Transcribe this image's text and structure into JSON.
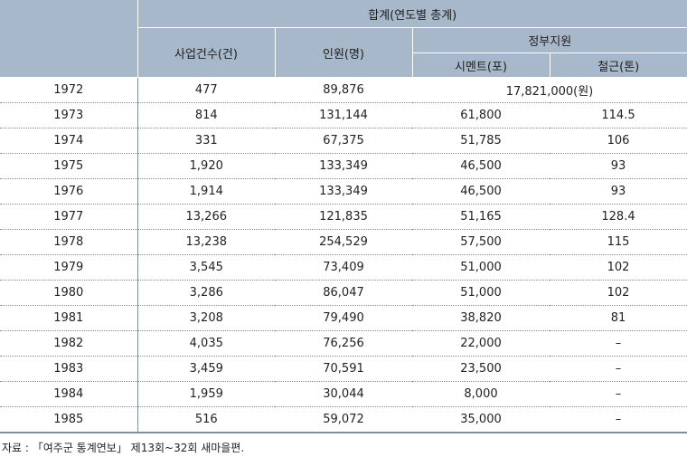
{
  "header": {
    "group_total": "합계(연도별 총계)",
    "project_count": "사업건수(건)",
    "personnel": "인원(명)",
    "govt_support": "정부지원",
    "cement": "시멘트(포)",
    "steel": "철근(톤)"
  },
  "rows": [
    {
      "year": "1972",
      "projects": "477",
      "personnel": "89,876",
      "merged": "17,821,000(원)"
    },
    {
      "year": "1973",
      "projects": "814",
      "personnel": "131,144",
      "cement": "61,800",
      "steel": "114.5"
    },
    {
      "year": "1974",
      "projects": "331",
      "personnel": "67,375",
      "cement": "51,785",
      "steel": "106"
    },
    {
      "year": "1975",
      "projects": "1,920",
      "personnel": "133,349",
      "cement": "46,500",
      "steel": "93"
    },
    {
      "year": "1976",
      "projects": "1,914",
      "personnel": "133,349",
      "cement": "46,500",
      "steel": "93"
    },
    {
      "year": "1977",
      "projects": "13,266",
      "personnel": "121,835",
      "cement": "51,165",
      "steel": "128.4"
    },
    {
      "year": "1978",
      "projects": "13,238",
      "personnel": "254,529",
      "cement": "57,500",
      "steel": "115"
    },
    {
      "year": "1979",
      "projects": "3,545",
      "personnel": "73,409",
      "cement": "51,000",
      "steel": "102"
    },
    {
      "year": "1980",
      "projects": "3,286",
      "personnel": "86,047",
      "cement": "51,000",
      "steel": "102"
    },
    {
      "year": "1981",
      "projects": "3,208",
      "personnel": "79,490",
      "cement": "38,820",
      "steel": "81"
    },
    {
      "year": "1982",
      "projects": "4,035",
      "personnel": "76,256",
      "cement": "22,000",
      "steel": "–"
    },
    {
      "year": "1983",
      "projects": "3,459",
      "personnel": "70,591",
      "cement": "23,500",
      "steel": "–"
    },
    {
      "year": "1984",
      "projects": "1,959",
      "personnel": "30,044",
      "cement": "8,000",
      "steel": "–"
    },
    {
      "year": "1985",
      "projects": "516",
      "personnel": "59,072",
      "cement": "35,000",
      "steel": "–"
    }
  ],
  "source": "자료 : 「여주군 통계연보」 제13회~32회 새마을편."
}
